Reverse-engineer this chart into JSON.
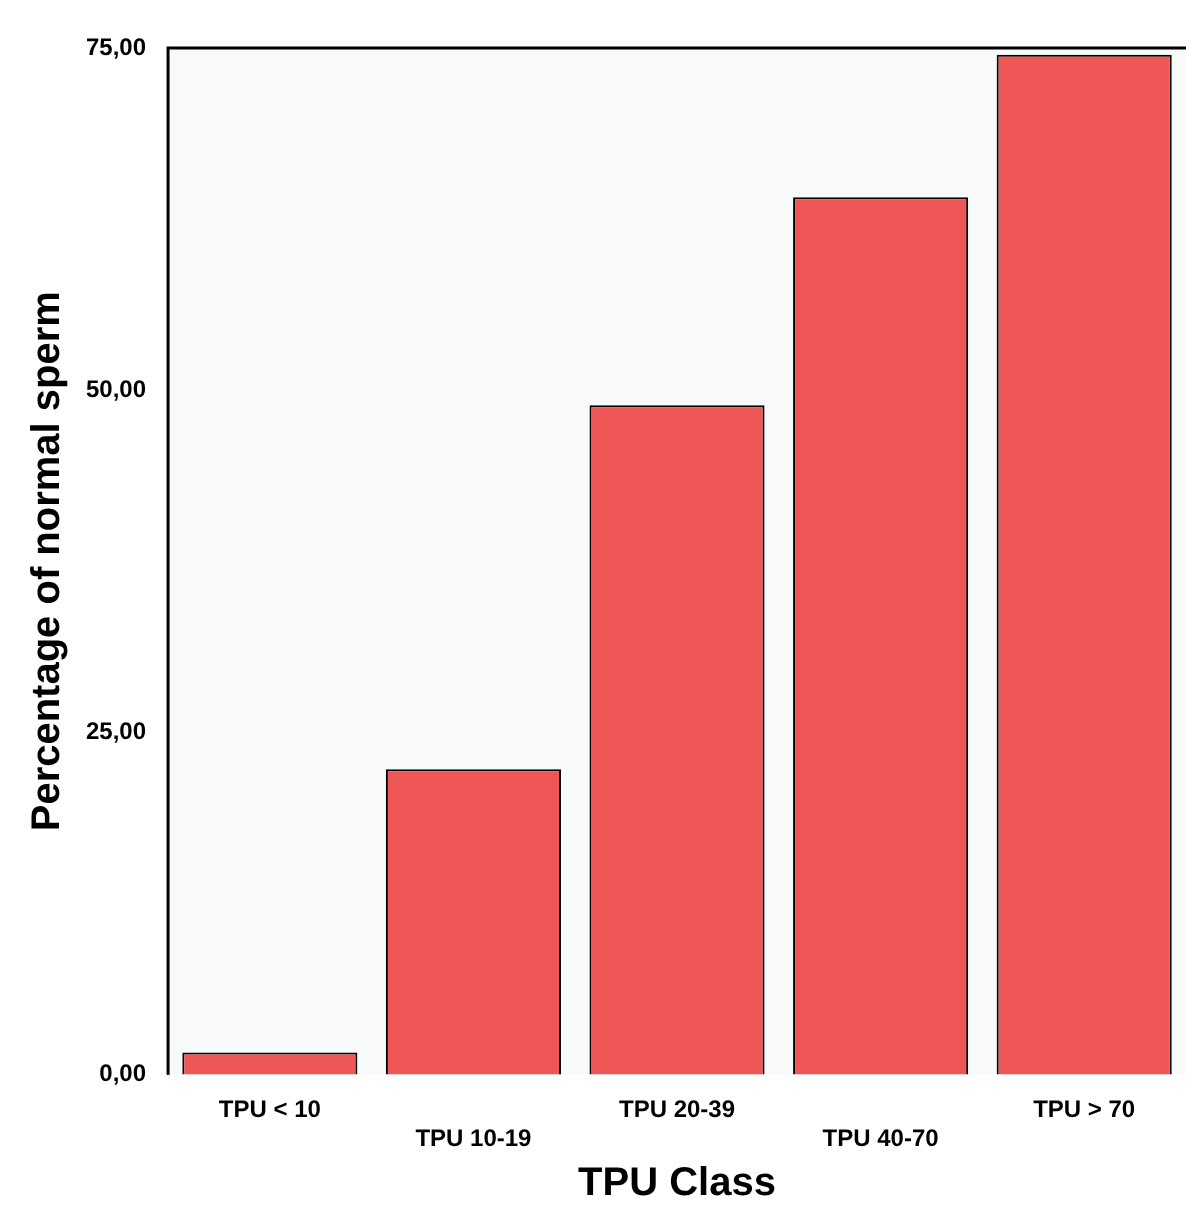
{
  "chart_data": {
    "type": "bar",
    "xlabel": "TPU Class",
    "ylabel": "Percentage of normal sperm",
    "categories": [
      "TPU < 10",
      "TPU 10-19",
      "TPU 20-39",
      "TPU 40-70",
      "TPU > 70"
    ],
    "values": [
      1.6,
      22.3,
      48.9,
      64.1,
      74.5
    ],
    "color": "#ef5757",
    "ylim": [
      0,
      75
    ],
    "yticks": [
      {
        "value": 0,
        "label": "0,00"
      },
      {
        "value": 25,
        "label": "25,00"
      },
      {
        "value": 50,
        "label": "50,00"
      },
      {
        "value": 75,
        "label": "75,00"
      }
    ],
    "grid": false,
    "legend": false
  }
}
